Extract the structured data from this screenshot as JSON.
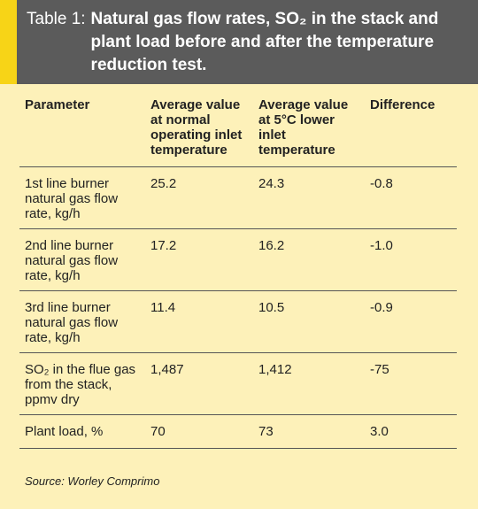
{
  "table": {
    "label": "Table 1:",
    "title": "Natural gas flow rates, SO₂ in the stack and plant load before and after the temperature reduction test.",
    "header": [
      "Parameter",
      "Average value at normal operating inlet temperature",
      "Average value at 5°C lower inlet temperature",
      "Difference"
    ],
    "rows": [
      [
        "1st line burner natural gas flow rate, kg/h",
        "25.2",
        "24.3",
        "-0.8"
      ],
      [
        "2nd line burner natural gas flow rate, kg/h",
        "17.2",
        "16.2",
        "-1.0"
      ],
      [
        "3rd line burner natural gas flow rate, kg/h",
        "11.4",
        "10.5",
        "-0.9"
      ],
      [
        "SO₂ in the flue gas from the stack, ppmv dry",
        "1,487",
        "1,412",
        "-75"
      ],
      [
        "Plant load, %",
        "70",
        "73",
        "3.0"
      ]
    ],
    "source": "Source: Worley Comprimo"
  }
}
